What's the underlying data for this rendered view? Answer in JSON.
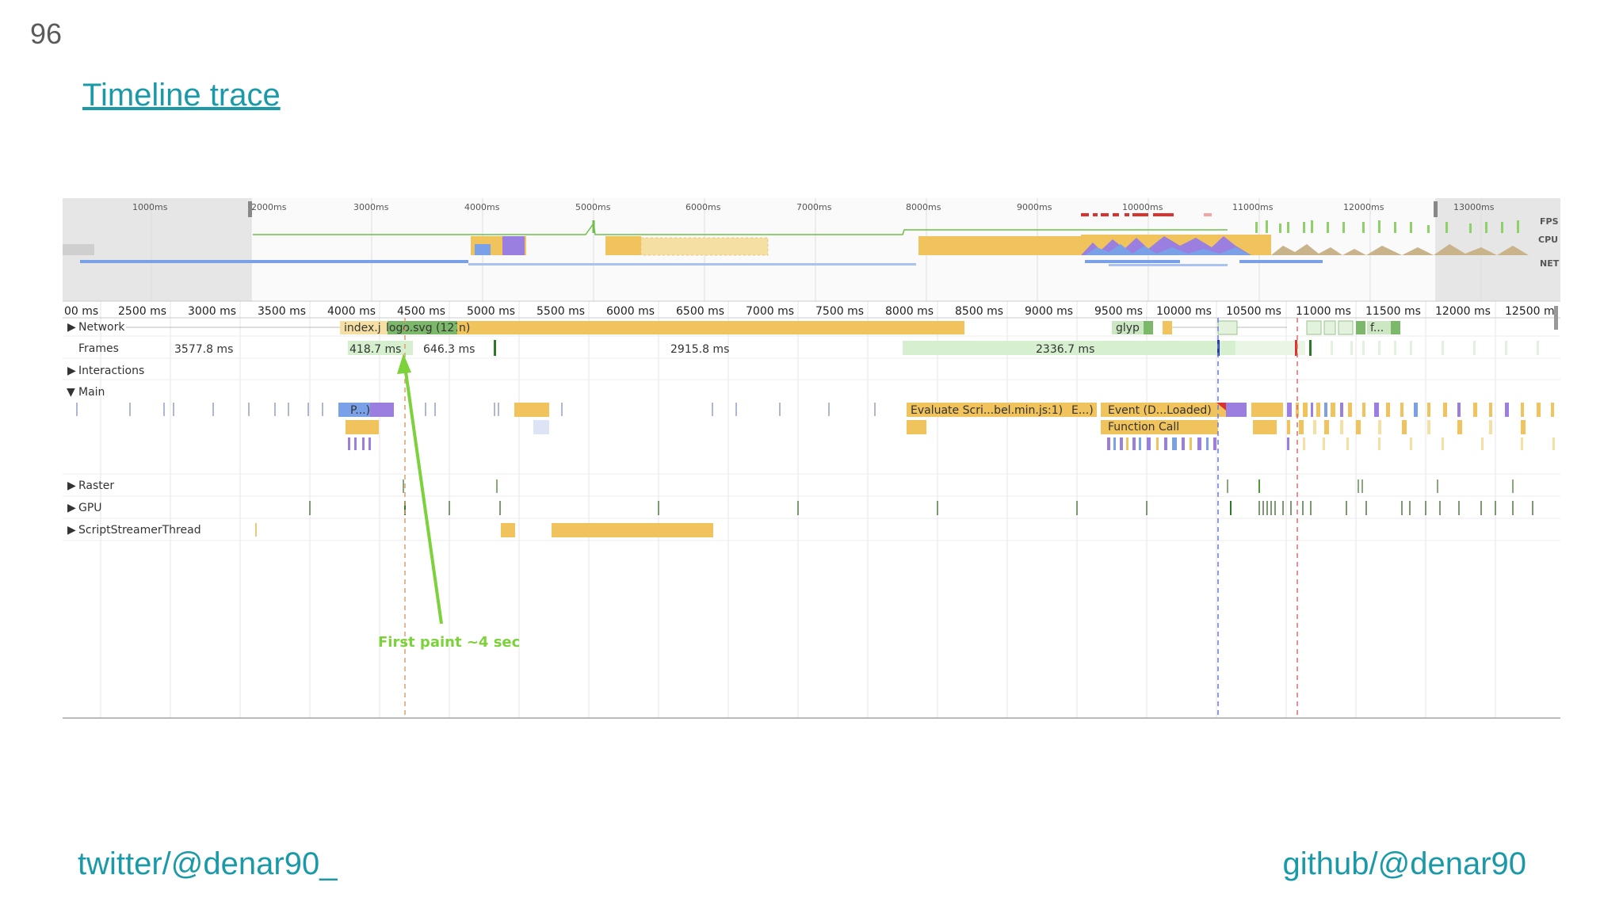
{
  "slide": {
    "number": "96",
    "title": "Timeline trace",
    "footer_left": "twitter/@denar90_",
    "footer_right": "github/@denar90"
  },
  "overview": {
    "ticks": [
      "1000ms",
      "2000ms",
      "3000ms",
      "4000ms",
      "5000ms",
      "6000ms",
      "7000ms",
      "8000ms",
      "9000ms",
      "10000ms",
      "11000ms",
      "12000ms",
      "13000ms"
    ],
    "side_labels": [
      "FPS",
      "CPU",
      "NET"
    ]
  },
  "ruler": {
    "ticks": [
      "00 ms",
      "2500 ms",
      "3000 ms",
      "3500 ms",
      "4000 ms",
      "4500 ms",
      "5000 ms",
      "5500 ms",
      "6000 ms",
      "6500 ms",
      "7000 ms",
      "7500 ms",
      "8000 ms",
      "8500 ms",
      "9000 ms",
      "9500 ms",
      "10000 ms",
      "10500 ms",
      "11000 ms",
      "11500 ms",
      "12000 ms",
      "12500 m"
    ]
  },
  "tracks": {
    "network": "Network",
    "frames": "Frames",
    "interactions": "Interactions",
    "main": "Main",
    "raster": "Raster",
    "gpu": "GPU",
    "script_streamer": "ScriptStreamerThread"
  },
  "network_items": {
    "index": "index.j",
    "logo": "logo.svg (127.0.... ",
    "tail": "n)",
    "glyp": "glyp",
    "f": "f..."
  },
  "frames": [
    "3577.8 ms",
    "418.7 ms",
    "646.3 ms",
    "2915.8 ms",
    "2336.7 ms"
  ],
  "main_items": {
    "p": "P...)",
    "evaluate": "Evaluate Scri...bel.min.js:1)",
    "e": "E...)",
    "event": "Event (D...Loaded)",
    "function_call": "Function Call"
  },
  "annotation": "First paint ~4 sec",
  "colors": {
    "link": "#1a9aa8",
    "scripting": "#f0c35c",
    "rendering": "#9a7ee0",
    "loading": "#7aa0e8",
    "frames": "#d6efcf",
    "annotation": "#7bd23a"
  }
}
